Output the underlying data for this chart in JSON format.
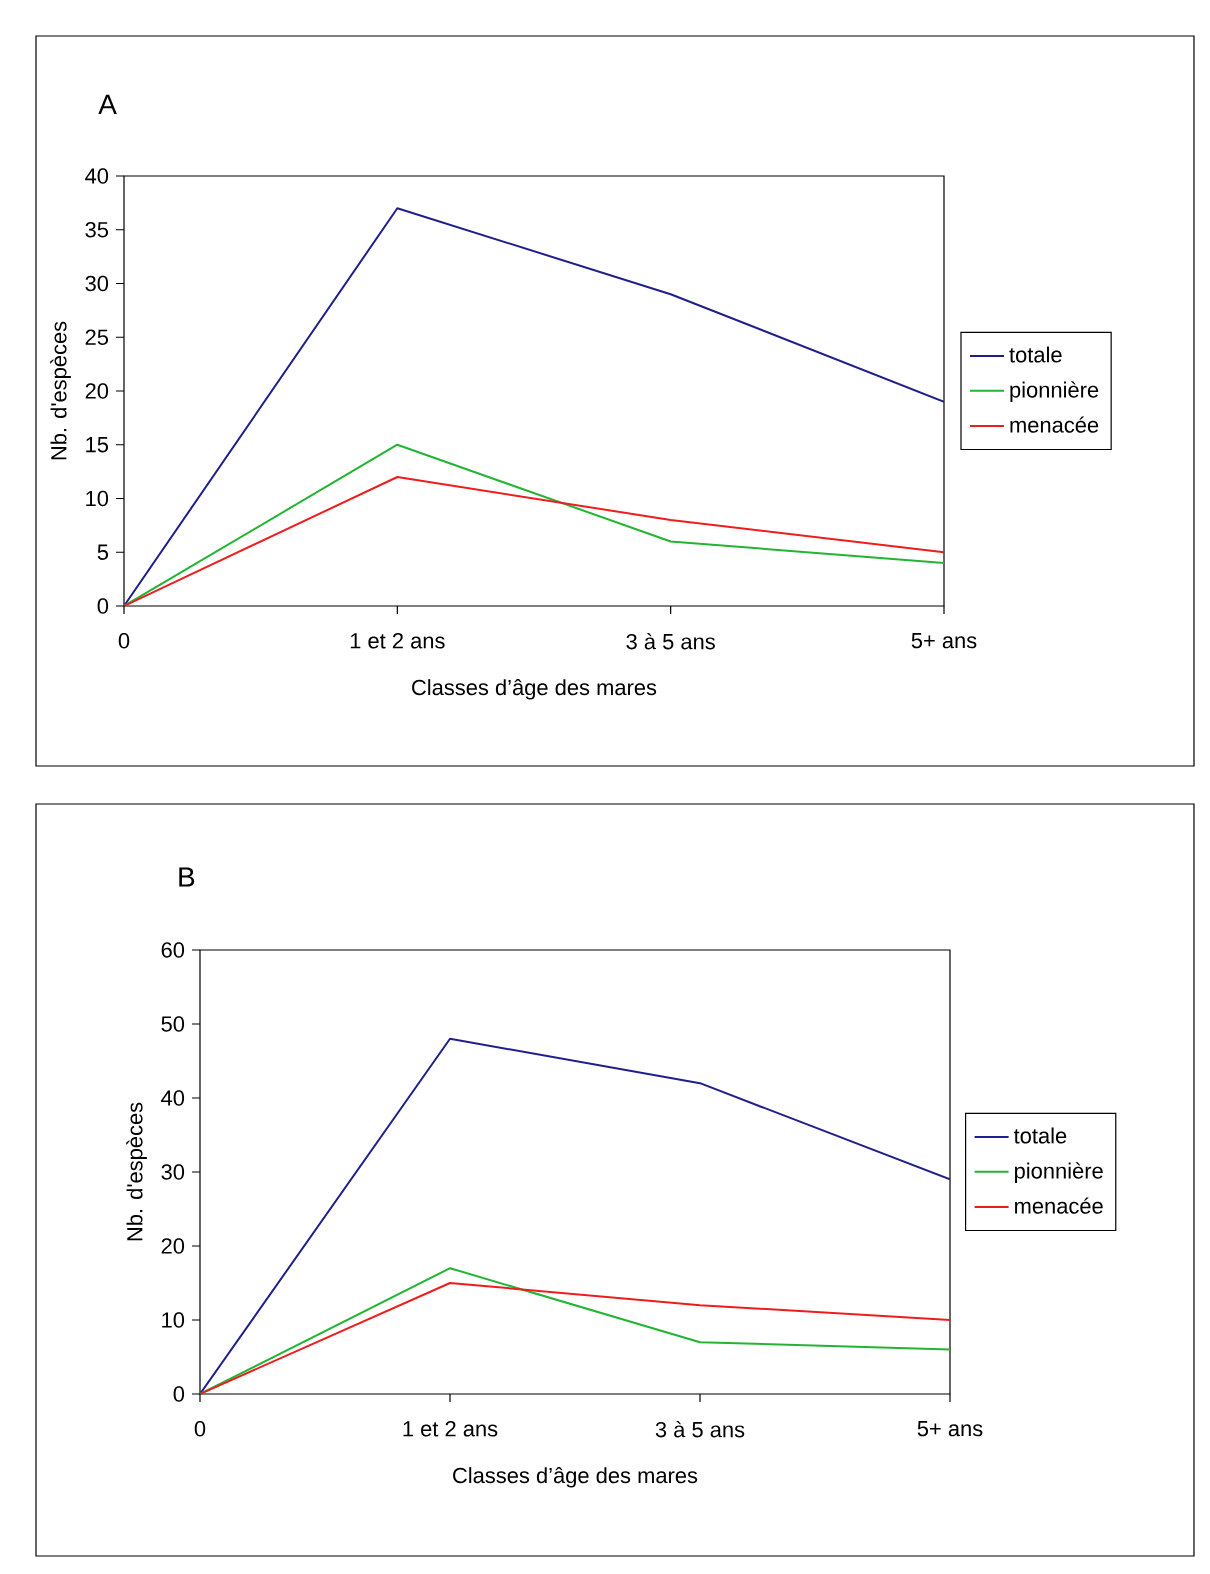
{
  "chart_data": [
    {
      "type": "line",
      "title": "A",
      "xlabel": "Classes d’âge des mares",
      "ylabel": "Nb. d'espèces",
      "categories": [
        "0",
        "1 et 2 ans",
        "3 à 5 ans",
        "5+ ans"
      ],
      "series": [
        {
          "name": "totale",
          "color": "#1f1f8c",
          "values": [
            0,
            37,
            29,
            19
          ]
        },
        {
          "name": "pionnière",
          "color": "#22b533",
          "values": [
            0,
            15,
            6,
            4
          ]
        },
        {
          "name": "menacée",
          "color": "#ee1c1c",
          "values": [
            0,
            12,
            8,
            5
          ]
        }
      ],
      "ylim": [
        0,
        40
      ],
      "yticks": [
        0,
        5,
        10,
        15,
        20,
        25,
        30,
        35,
        40
      ],
      "legend": "right"
    },
    {
      "type": "line",
      "title": "B",
      "xlabel": "Classes d’âge des mares",
      "ylabel": "Nb. d'espèces",
      "categories": [
        "0",
        "1 et 2 ans",
        "3 à 5 ans",
        "5+ ans"
      ],
      "series": [
        {
          "name": "totale",
          "color": "#1f1f8c",
          "values": [
            0,
            48,
            42,
            29
          ]
        },
        {
          "name": "pionnière",
          "color": "#22b533",
          "values": [
            0,
            17,
            7,
            6
          ]
        },
        {
          "name": "menacée",
          "color": "#ee1c1c",
          "values": [
            0,
            15,
            12,
            10
          ]
        }
      ],
      "ylim": [
        0,
        60
      ],
      "yticks": [
        0,
        10,
        20,
        30,
        40,
        50,
        60
      ],
      "legend": "right"
    }
  ]
}
